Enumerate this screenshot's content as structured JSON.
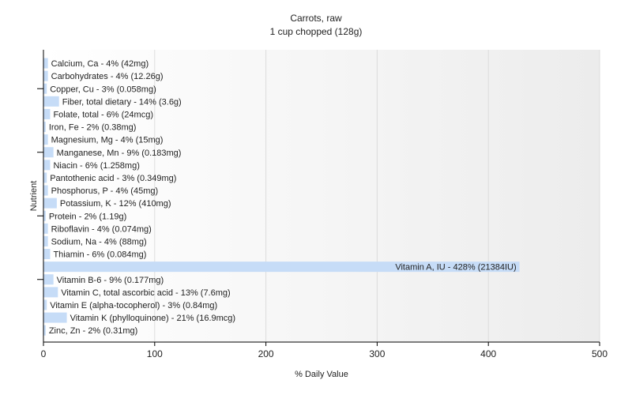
{
  "chart_data": {
    "type": "bar",
    "orientation": "horizontal",
    "title": "Carrots, raw",
    "subtitle": "1 cup chopped (128g)",
    "xlabel": "% Daily Value",
    "ylabel": "Nutrient",
    "xlim": [
      0,
      500
    ],
    "xticks": [
      0,
      100,
      200,
      300,
      400,
      500
    ],
    "grid": true,
    "bar_color": "#c6dcf7",
    "categories": [
      "Calcium, Ca",
      "Carbohydrates",
      "Copper, Cu",
      "Fiber, total dietary",
      "Folate, total",
      "Iron, Fe",
      "Magnesium, Mg",
      "Manganese, Mn",
      "Niacin",
      "Pantothenic acid",
      "Phosphorus, P",
      "Potassium, K",
      "Protein",
      "Riboflavin",
      "Sodium, Na",
      "Thiamin",
      "Vitamin A, IU",
      "Vitamin B-6",
      "Vitamin C, total ascorbic acid",
      "Vitamin E (alpha-tocopherol)",
      "Vitamin K (phylloquinone)",
      "Zinc, Zn"
    ],
    "values": [
      4,
      4,
      3,
      14,
      6,
      2,
      4,
      9,
      6,
      3,
      4,
      12,
      2,
      4,
      4,
      6,
      428,
      9,
      13,
      3,
      21,
      2
    ],
    "labels": [
      "Calcium, Ca - 4% (42mg)",
      "Carbohydrates - 4% (12.26g)",
      "Copper, Cu - 3% (0.058mg)",
      "Fiber, total dietary - 14% (3.6g)",
      "Folate, total - 6% (24mcg)",
      "Iron, Fe - 2% (0.38mg)",
      "Magnesium, Mg - 4% (15mg)",
      "Manganese, Mn - 9% (0.183mg)",
      "Niacin - 6% (1.258mg)",
      "Pantothenic acid - 3% (0.349mg)",
      "Phosphorus, P - 4% (45mg)",
      "Potassium, K - 12% (410mg)",
      "Protein - 2% (1.19g)",
      "Riboflavin - 4% (0.074mg)",
      "Sodium, Na - 4% (88mg)",
      "Thiamin - 6% (0.084mg)",
      "Vitamin A, IU - 428% (21384IU)",
      "Vitamin B-6 - 9% (0.177mg)",
      "Vitamin C, total ascorbic acid - 13% (7.6mg)",
      "Vitamin E (alpha-tocopherol) - 3% (0.84mg)",
      "Vitamin K (phylloquinone) - 21% (16.9mcg)",
      "Zinc, Zn - 2% (0.31mg)"
    ]
  }
}
